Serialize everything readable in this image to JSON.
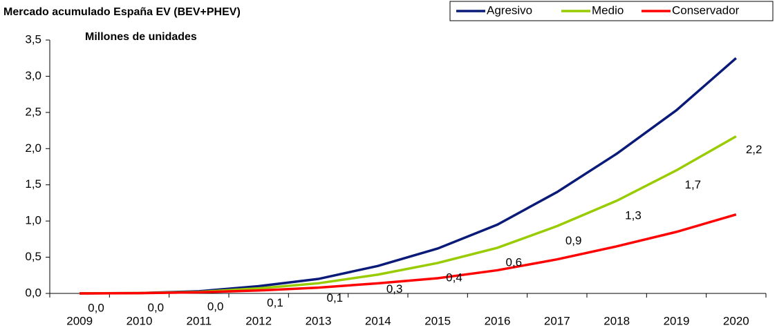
{
  "chart_data": {
    "type": "line",
    "title": "Mercado acumulado España EV (BEV+PHEV)",
    "subtitle": "Millones de unidades",
    "categories": [
      "2009",
      "2010",
      "2011",
      "2012",
      "2013",
      "2014",
      "2015",
      "2016",
      "2017",
      "2018",
      "2019",
      "2020"
    ],
    "series": [
      {
        "name": "Agresivo",
        "color": "#0a1a78",
        "values": [
          0,
          0.005,
          0.03,
          0.1,
          0.2,
          0.38,
          0.62,
          0.95,
          1.4,
          1.93,
          2.53,
          3.25
        ]
      },
      {
        "name": "Medio",
        "color": "#99cc00",
        "values": [
          0,
          0.005,
          0.02,
          0.07,
          0.14,
          0.26,
          0.42,
          0.63,
          0.93,
          1.28,
          1.7,
          2.17
        ],
        "value_labels": [
          "0,0",
          "0,0",
          "0,0",
          "0,1",
          "0,1",
          "0,3",
          "0,4",
          "0,6",
          "0,9",
          "1,3",
          "1,7",
          "2,2"
        ]
      },
      {
        "name": "Conservador",
        "color": "#ff0000",
        "values": [
          0,
          0.003,
          0.015,
          0.04,
          0.08,
          0.14,
          0.21,
          0.32,
          0.47,
          0.65,
          0.85,
          1.09
        ]
      }
    ],
    "ylim": [
      0,
      3.5
    ],
    "yticks": [
      {
        "value": 0,
        "label": "0,0"
      },
      {
        "value": 0.5,
        "label": "0,5"
      },
      {
        "value": 1,
        "label": "1,0"
      },
      {
        "value": 1.5,
        "label": "1,5"
      },
      {
        "value": 2,
        "label": "2,0"
      },
      {
        "value": 2.5,
        "label": "2,5"
      },
      {
        "value": 3,
        "label": "3,0"
      },
      {
        "value": 3.5,
        "label": "3,5"
      }
    ],
    "legend": "top-right"
  }
}
